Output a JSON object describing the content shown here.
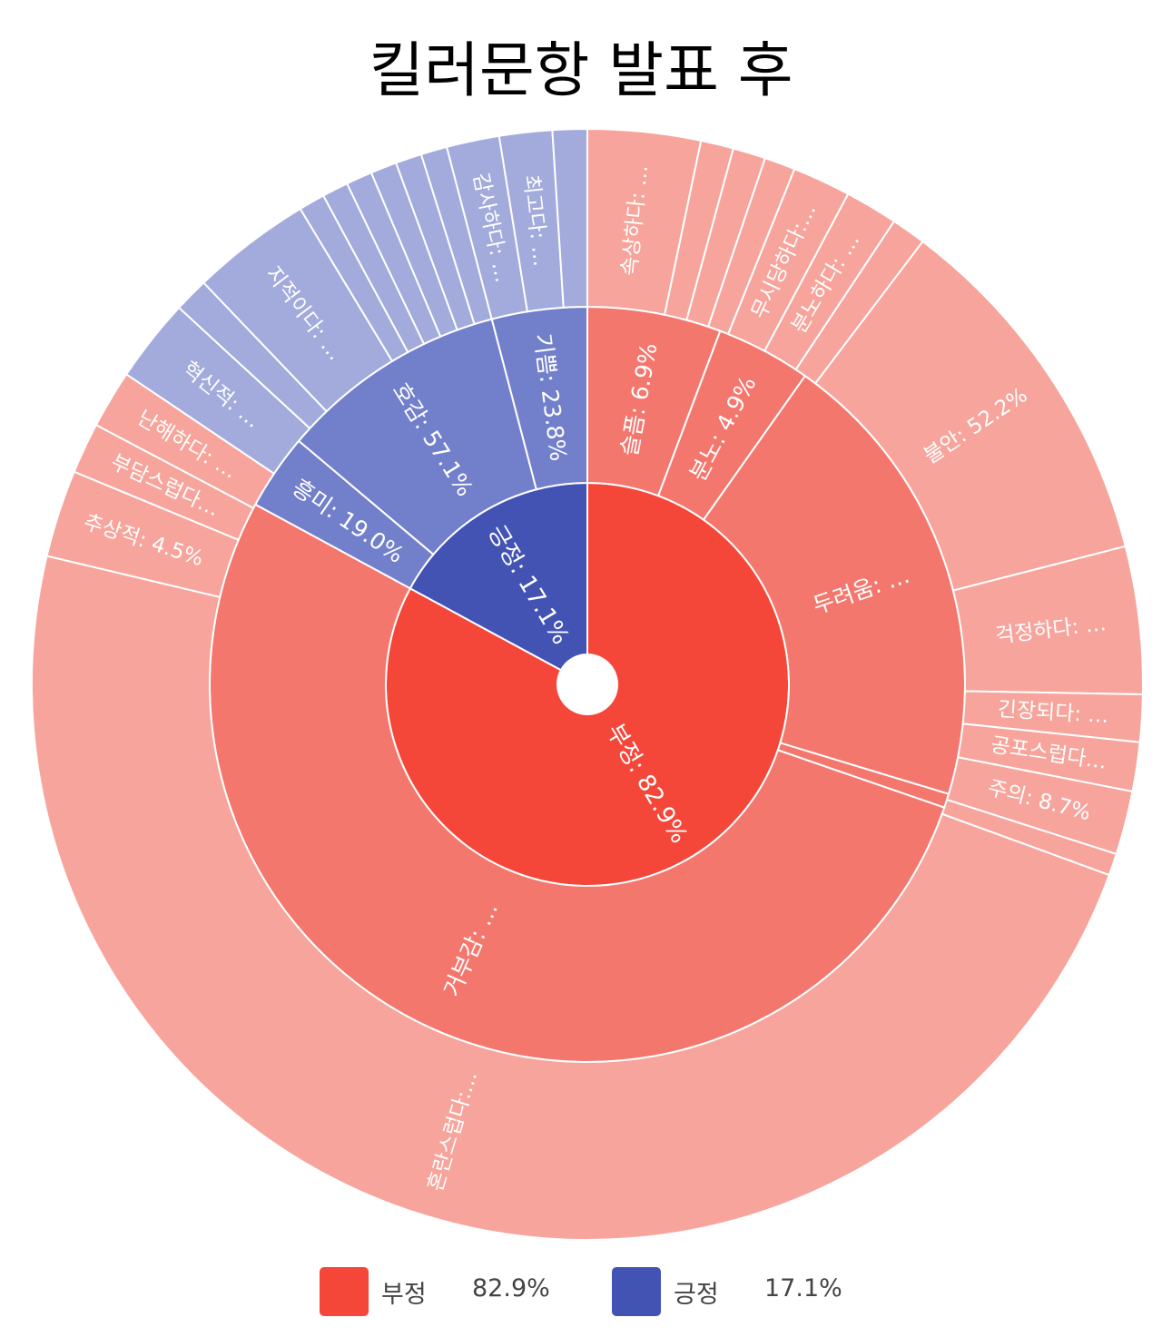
{
  "chart_data": {
    "type": "sunburst",
    "title": "킬러문항 발표 후",
    "colors": {
      "neg": [
        "#f4473a",
        "#f4776e",
        "#f7a49c"
      ],
      "pos": [
        "#4353b4",
        "#7280cb",
        "#a2abdb"
      ],
      "border": "#ffffff",
      "label": "#ffffff"
    },
    "legend": [
      {
        "name": "부정",
        "percent": "82.9%",
        "color": "#f4473a"
      },
      {
        "name": "긍정",
        "percent": "17.1%",
        "color": "#4353b4"
      }
    ],
    "rings": {
      "inner": [
        {
          "name": "부정",
          "value": 82.9,
          "group": "neg",
          "label": "부정: 82.9%"
        },
        {
          "name": "긍정",
          "value": 17.1,
          "group": "pos",
          "label": "긍정: 17.1%"
        }
      ],
      "middle": [
        {
          "name": "슬픔",
          "value": 5.72,
          "group": "neg",
          "label": "슬픔: 6.9%"
        },
        {
          "name": "분노",
          "value": 4.06,
          "group": "neg",
          "label": "분노: 4.9%"
        },
        {
          "name": "두려움",
          "value": 19.9,
          "group": "neg",
          "label": "두려움: …"
        },
        {
          "name": "",
          "value": 0.6,
          "group": "neg",
          "label": ""
        },
        {
          "name": "거부감",
          "value": 52.6,
          "group": "neg",
          "label": "거부감: …"
        },
        {
          "name": "흥미",
          "value": 3.25,
          "group": "pos",
          "label": "흥미: 19.0%"
        },
        {
          "name": "호감",
          "value": 9.77,
          "group": "pos",
          "label": "호감: 57.1%"
        },
        {
          "name": "기쁨",
          "value": 4.07,
          "group": "pos",
          "label": "기쁨: 23.8%"
        }
      ],
      "outer": [
        {
          "name": "속상하다",
          "value": 3.1,
          "group": "neg",
          "label": "속상하다: …"
        },
        {
          "name": "",
          "value": 0.9,
          "group": "neg",
          "label": ""
        },
        {
          "name": "",
          "value": 0.9,
          "group": "neg",
          "label": ""
        },
        {
          "name": "",
          "value": 0.85,
          "group": "neg",
          "label": ""
        },
        {
          "name": "무시당하다",
          "value": 1.6,
          "group": "neg",
          "label": "무시당하다:…"
        },
        {
          "name": "분노하다",
          "value": 1.45,
          "group": "neg",
          "label": "분노하다: …"
        },
        {
          "name": "",
          "value": 0.95,
          "group": "neg",
          "label": ""
        },
        {
          "name": "불안",
          "value": 10.1,
          "group": "neg",
          "label": "불안: 52.2%"
        },
        {
          "name": "걱정하다",
          "value": 4.05,
          "group": "neg",
          "label": "걱정하다: …"
        },
        {
          "name": "긴장되다",
          "value": 1.3,
          "group": "neg",
          "label": "긴장되다: …"
        },
        {
          "name": "공포스럽다",
          "value": 1.35,
          "group": "neg",
          "label": "공포스럽다…"
        },
        {
          "name": "주의",
          "value": 1.75,
          "group": "neg",
          "label": "주의: 8.7%"
        },
        {
          "name": "",
          "value": 0.6,
          "group": "neg",
          "label": ""
        },
        {
          "name": "혼란스럽다",
          "value": 45.5,
          "group": "neg",
          "label": "혼란스럽다:…"
        },
        {
          "name": "추상적",
          "value": 2.4,
          "group": "neg",
          "label": "추상적: 4.5%"
        },
        {
          "name": "부담스럽다",
          "value": 1.4,
          "group": "neg",
          "label": "부담스럽다…"
        },
        {
          "name": "난해하다",
          "value": 1.6,
          "group": "neg",
          "label": "난해하다: …"
        },
        {
          "name": "혁신적",
          "value": 2.3,
          "group": "pos",
          "label": "혁신적: …"
        },
        {
          "name": "",
          "value": 0.95,
          "group": "pos",
          "label": ""
        },
        {
          "name": "지적이다",
          "value": 3.3,
          "group": "pos",
          "label": "지적이다: …"
        },
        {
          "name": "",
          "value": 0.72,
          "group": "pos",
          "label": ""
        },
        {
          "name": "",
          "value": 0.72,
          "group": "pos",
          "label": ""
        },
        {
          "name": "",
          "value": 0.72,
          "group": "pos",
          "label": ""
        },
        {
          "name": "",
          "value": 0.72,
          "group": "pos",
          "label": ""
        },
        {
          "name": "",
          "value": 0.72,
          "group": "pos",
          "label": ""
        },
        {
          "name": "",
          "value": 0.72,
          "group": "pos",
          "label": ""
        },
        {
          "name": "감사하다",
          "value": 1.45,
          "group": "pos",
          "label": "감사하다: …"
        },
        {
          "name": "최고다",
          "value": 1.45,
          "group": "pos",
          "label": "최고다: …"
        },
        {
          "name": "",
          "value": 0.95,
          "group": "pos",
          "label": ""
        }
      ]
    }
  }
}
